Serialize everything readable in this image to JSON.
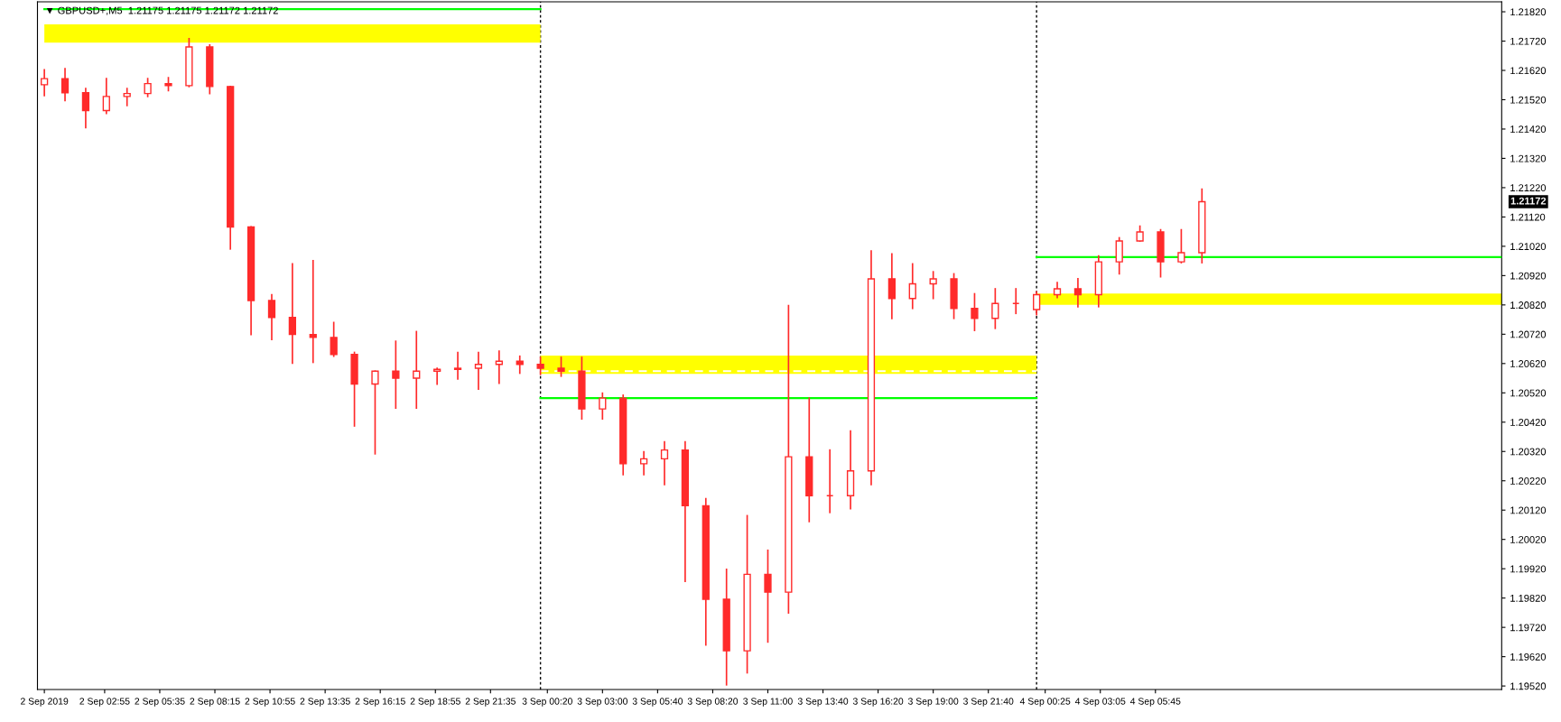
{
  "chart_data": {
    "type": "candlestick",
    "title": "▼ GBPUSD+,M5  1.21175 1.21175 1.21172 1.21172",
    "x": [
      "2019-09-02T00:00",
      "2019-09-02T01:00",
      "2019-09-02T02:00",
      "2019-09-02T03:00",
      "2019-09-02T04:00",
      "2019-09-02T05:00",
      "2019-09-02T06:00",
      "2019-09-02T07:00",
      "2019-09-02T08:00",
      "2019-09-02T09:00",
      "2019-09-02T10:00",
      "2019-09-02T11:00",
      "2019-09-02T12:00",
      "2019-09-02T13:00",
      "2019-09-02T14:00",
      "2019-09-02T15:00",
      "2019-09-02T16:00",
      "2019-09-02T17:00",
      "2019-09-02T18:00",
      "2019-09-02T19:00",
      "2019-09-02T20:00",
      "2019-09-02T21:00",
      "2019-09-02T22:00",
      "2019-09-02T23:00",
      "2019-09-03T00:00",
      "2019-09-03T01:00",
      "2019-09-03T02:00",
      "2019-09-03T03:00",
      "2019-09-03T04:00",
      "2019-09-03T05:00",
      "2019-09-03T06:00",
      "2019-09-03T07:00",
      "2019-09-03T08:00",
      "2019-09-03T09:00",
      "2019-09-03T10:00",
      "2019-09-03T11:00",
      "2019-09-03T12:00",
      "2019-09-03T13:00",
      "2019-09-03T14:00",
      "2019-09-03T15:00",
      "2019-09-03T16:00",
      "2019-09-03T17:00",
      "2019-09-03T18:00",
      "2019-09-03T19:00",
      "2019-09-03T20:00",
      "2019-09-03T21:00",
      "2019-09-03T22:00",
      "2019-09-03T23:00",
      "2019-09-04T00:00",
      "2019-09-04T01:00",
      "2019-09-04T02:00",
      "2019-09-04T03:00",
      "2019-09-04T04:00",
      "2019-09-04T05:00",
      "2019-09-04T06:00",
      "2019-09-04T07:00",
      "2019-09-04T08:00"
    ],
    "ohlc": [
      [
        1.21571,
        1.21622,
        1.21534,
        1.21592
      ],
      [
        1.21592,
        1.21626,
        1.21517,
        1.21544
      ],
      [
        1.21544,
        1.21558,
        1.21425,
        1.21483
      ],
      [
        1.21483,
        1.21592,
        1.21473,
        1.21531
      ],
      [
        1.21531,
        1.21558,
        1.215,
        1.21541
      ],
      [
        1.21541,
        1.21592,
        1.21531,
        1.21575
      ],
      [
        1.21575,
        1.21595,
        1.21551,
        1.21568
      ],
      [
        1.21568,
        1.21728,
        1.21565,
        1.217
      ],
      [
        1.217,
        1.21707,
        1.21541,
        1.21565
      ],
      [
        1.21565,
        1.21565,
        1.21011,
        1.21086
      ],
      [
        1.21086,
        1.21086,
        1.20719,
        1.20835
      ],
      [
        1.20835,
        1.20855,
        1.20702,
        1.20777
      ],
      [
        1.20777,
        1.2096,
        1.20621,
        1.20719
      ],
      [
        1.20719,
        1.20971,
        1.20624,
        1.20709
      ],
      [
        1.20709,
        1.2076,
        1.20645,
        1.20651
      ],
      [
        1.20651,
        1.20658,
        1.20407,
        1.2055
      ],
      [
        1.2055,
        1.20594,
        1.20312,
        1.20594
      ],
      [
        1.20594,
        1.20696,
        1.20468,
        1.2057
      ],
      [
        1.2057,
        1.20729,
        1.20468,
        1.20594
      ],
      [
        1.20594,
        1.20604,
        1.2055,
        1.206
      ],
      [
        1.206,
        1.20658,
        1.20567,
        1.20604
      ],
      [
        1.20604,
        1.20658,
        1.20533,
        1.20617
      ],
      [
        1.20617,
        1.20662,
        1.20553,
        1.20628
      ],
      [
        1.20628,
        1.20645,
        1.20587,
        1.20617
      ],
      [
        1.20617,
        1.20641,
        1.20583,
        1.20604
      ],
      [
        1.20604,
        1.20641,
        1.20577,
        1.20594
      ],
      [
        1.20594,
        1.20641,
        1.20431,
        1.20465
      ],
      [
        1.20465,
        1.20519,
        1.20431,
        1.20502
      ],
      [
        1.20502,
        1.20512,
        1.20241,
        1.20278
      ],
      [
        1.20278,
        1.20319,
        1.20241,
        1.20295
      ],
      [
        1.20295,
        1.20353,
        1.20207,
        1.20325
      ],
      [
        1.20325,
        1.20353,
        1.19877,
        1.20135
      ],
      [
        1.20135,
        1.20159,
        1.1966,
        1.19816
      ],
      [
        1.19816,
        1.19918,
        1.19524,
        1.1964
      ],
      [
        1.1964,
        1.20101,
        1.19565,
        1.19901
      ],
      [
        1.19901,
        1.19983,
        1.1967,
        1.1984
      ],
      [
        1.1984,
        1.20818,
        1.19769,
        1.20302
      ],
      [
        1.20302,
        1.20502,
        1.20081,
        1.20169
      ],
      [
        1.20169,
        1.20325,
        1.20112,
        1.20169
      ],
      [
        1.20169,
        1.2039,
        1.20125,
        1.20254
      ],
      [
        1.20254,
        1.21004,
        1.20207,
        1.20909
      ],
      [
        1.20909,
        1.20994,
        1.20774,
        1.20842
      ],
      [
        1.20842,
        1.2096,
        1.20808,
        1.20892
      ],
      [
        1.20892,
        1.20933,
        1.20842,
        1.20909
      ],
      [
        1.20909,
        1.20926,
        1.20774,
        1.20808
      ],
      [
        1.20808,
        1.20858,
        1.20733,
        1.20774
      ],
      [
        1.20774,
        1.20875,
        1.2074,
        1.20825
      ],
      [
        1.20825,
        1.20875,
        1.20791,
        1.20825
      ],
      [
        1.20804,
        1.20865,
        1.20787,
        1.20855
      ],
      [
        1.20855,
        1.20896,
        1.20845,
        1.20875
      ],
      [
        1.20875,
        1.20909,
        1.20814,
        1.20855
      ],
      [
        1.20855,
        1.20987,
        1.20814,
        1.20967
      ],
      [
        1.20967,
        1.21049,
        1.20926,
        1.21038
      ],
      [
        1.21038,
        1.21089,
        1.21038,
        1.21069
      ],
      [
        1.21069,
        1.21076,
        1.20916,
        1.20967
      ],
      [
        1.20967,
        1.21076,
        1.20964,
        1.20998
      ],
      [
        1.20998,
        1.21215,
        1.20964,
        1.21172
      ]
    ],
    "color": "#ff2a2a",
    "series": [
      {
        "type": "line",
        "color": "#ffff00",
        "x": [
          "2019-09-02T00:00",
          "2019-09-03T00:00"
        ],
        "values": [
          null,
          null
        ],
        "lower": [
          1.21715,
          1.21715
        ],
        "upper": [
          1.21777,
          1.21777
        ]
      },
      {
        "type": "line",
        "color": "#ffff00",
        "x": [
          "2019-09-03T00:00",
          "2019-09-04T00:00"
        ],
        "values": [
          null,
          null
        ],
        "lower": [
          1.20585,
          1.20585
        ],
        "upper": [
          1.20647,
          1.20647
        ]
      },
      {
        "type": "line",
        "color": "#ffff00",
        "x": [
          "2019-09-04T00:00",
          "2019-09-04T22:30"
        ],
        "values": [
          null,
          null
        ],
        "lower": [
          1.2082,
          1.2082
        ],
        "upper": [
          1.20859,
          1.20859
        ]
      },
      {
        "type": "line",
        "color": "#00ff00",
        "line_style": "solid",
        "x": [
          "2019-09-02T00:00",
          "2019-09-03T00:00"
        ],
        "values": [
          1.21829,
          1.21829
        ]
      },
      {
        "type": "line",
        "color": "#00ff00",
        "line_style": "solid",
        "x": [
          "2019-09-03T00:00",
          "2019-09-04T00:00"
        ],
        "values": [
          1.20502,
          1.20502
        ]
      },
      {
        "type": "line",
        "color": "#ffffff",
        "line_style": "dashed",
        "x": [
          "2019-09-03T00:00",
          "2019-09-04T00:00"
        ],
        "values": [
          1.20594,
          1.20594
        ]
      },
      {
        "type": "line",
        "color": "#00ff00",
        "line_style": "solid",
        "x": [
          "2019-09-04T00:00",
          "2019-09-04T22:30"
        ],
        "values": [
          1.20983,
          1.20983
        ]
      }
    ],
    "xlim": [
      "2019-09-01T23:40",
      "2019-09-04T22:30"
    ],
    "xticks": [
      {
        "value": "2019-09-02T00:00",
        "label": "2 Sep 2019"
      },
      {
        "value": "2019-09-02T02:55",
        "label": "2 Sep 02:55"
      },
      {
        "value": "2019-09-02T05:35",
        "label": "2 Sep 05:35"
      },
      {
        "value": "2019-09-02T08:15",
        "label": "2 Sep 08:15"
      },
      {
        "value": "2019-09-02T10:55",
        "label": "2 Sep 10:55"
      },
      {
        "value": "2019-09-02T13:35",
        "label": "2 Sep 13:35"
      },
      {
        "value": "2019-09-02T16:15",
        "label": "2 Sep 16:15"
      },
      {
        "value": "2019-09-02T18:55",
        "label": "2 Sep 18:55"
      },
      {
        "value": "2019-09-02T21:35",
        "label": "2 Sep 21:35"
      },
      {
        "value": "2019-09-03T00:20",
        "label": "3 Sep 00:20"
      },
      {
        "value": "2019-09-03T03:00",
        "label": "3 Sep 03:00"
      },
      {
        "value": "2019-09-03T05:40",
        "label": "3 Sep 05:40"
      },
      {
        "value": "2019-09-03T08:20",
        "label": "3 Sep 08:20"
      },
      {
        "value": "2019-09-03T11:00",
        "label": "3 Sep 11:00"
      },
      {
        "value": "2019-09-03T13:40",
        "label": "3 Sep 13:40"
      },
      {
        "value": "2019-09-03T16:20",
        "label": "3 Sep 16:20"
      },
      {
        "value": "2019-09-03T19:00",
        "label": "3 Sep 19:00"
      },
      {
        "value": "2019-09-03T21:40",
        "label": "3 Sep 21:40"
      },
      {
        "value": "2019-09-04T00:25",
        "label": "4 Sep 00:25"
      },
      {
        "value": "2019-09-04T03:05",
        "label": "4 Sep 03:05"
      },
      {
        "value": "2019-09-04T05:45",
        "label": "4 Sep 05:45"
      }
    ],
    "ylim": [
      1.19508,
      1.21854
    ],
    "yticks": [
      {
        "value": 1.1952,
        "label": "1.19520"
      },
      {
        "value": 1.1962,
        "label": "1.19620"
      },
      {
        "value": 1.1972,
        "label": "1.19720"
      },
      {
        "value": 1.1982,
        "label": "1.19820"
      },
      {
        "value": 1.1992,
        "label": "1.19920"
      },
      {
        "value": 1.2002,
        "label": "1.20020"
      },
      {
        "value": 1.2012,
        "label": "1.20120"
      },
      {
        "value": 1.2022,
        "label": "1.20220"
      },
      {
        "value": 1.2032,
        "label": "1.20320"
      },
      {
        "value": 1.2042,
        "label": "1.20420"
      },
      {
        "value": 1.2052,
        "label": "1.20520"
      },
      {
        "value": 1.2062,
        "label": "1.20620"
      },
      {
        "value": 1.2072,
        "label": "1.20720"
      },
      {
        "value": 1.2082,
        "label": "1.20820"
      },
      {
        "value": 1.2092,
        "label": "1.20920"
      },
      {
        "value": 1.2102,
        "label": "1.21020"
      },
      {
        "value": 1.2112,
        "label": "1.21120"
      },
      {
        "value": 1.2122,
        "label": "1.21220"
      },
      {
        "value": 1.2132,
        "label": "1.21320"
      },
      {
        "value": 1.2142,
        "label": "1.21420"
      },
      {
        "value": 1.2152,
        "label": "1.21520"
      },
      {
        "value": 1.2162,
        "label": "1.21620"
      },
      {
        "value": 1.2172,
        "label": "1.21720"
      },
      {
        "value": 1.2182,
        "label": "1.21820"
      }
    ],
    "ref_lines": [
      {
        "axis": "x",
        "value": "2019-09-03T00:00",
        "color": "#000000",
        "line_style": "dotted"
      },
      {
        "axis": "x",
        "value": "2019-09-04T00:00",
        "color": "#000000",
        "line_style": "dotted"
      }
    ],
    "annotations": [
      "1.21172"
    ],
    "grid": false,
    "legend": false
  }
}
